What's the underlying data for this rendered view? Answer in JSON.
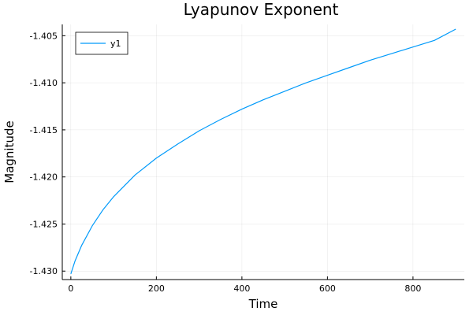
{
  "chart_data": {
    "type": "line",
    "title": "Lyapunov Exponent",
    "xlabel": "Time",
    "ylabel": "Magnitude",
    "xlim": [
      -20,
      920
    ],
    "ylim": [
      -1.4309,
      -1.4038
    ],
    "xticks": [
      0,
      200,
      400,
      600,
      800
    ],
    "xtick_labels": [
      "0",
      "200",
      "400",
      "600",
      "800"
    ],
    "yticks": [
      -1.43,
      -1.425,
      -1.42,
      -1.415,
      -1.41,
      -1.405
    ],
    "ytick_labels": [
      "-1.430",
      "-1.425",
      "-1.420",
      "-1.415",
      "-1.410",
      "-1.405"
    ],
    "grid": true,
    "legend": {
      "position": "top-left",
      "entries": [
        "y1"
      ]
    },
    "series": [
      {
        "name": "y1",
        "color": "#009AFA",
        "x": [
          0,
          10,
          25,
          50,
          75,
          100,
          150,
          200,
          250,
          300,
          350,
          400,
          450,
          500,
          550,
          600,
          650,
          700,
          750,
          800,
          850,
          900
        ],
        "y": [
          -1.4303,
          -1.4289,
          -1.4273,
          -1.4252,
          -1.4235,
          -1.4221,
          -1.4198,
          -1.418,
          -1.4165,
          -1.4151,
          -1.4139,
          -1.4128,
          -1.4118,
          -1.4109,
          -1.41,
          -1.4092,
          -1.4084,
          -1.4076,
          -1.4069,
          -1.4062,
          -1.4055,
          -1.4043
        ]
      }
    ]
  }
}
